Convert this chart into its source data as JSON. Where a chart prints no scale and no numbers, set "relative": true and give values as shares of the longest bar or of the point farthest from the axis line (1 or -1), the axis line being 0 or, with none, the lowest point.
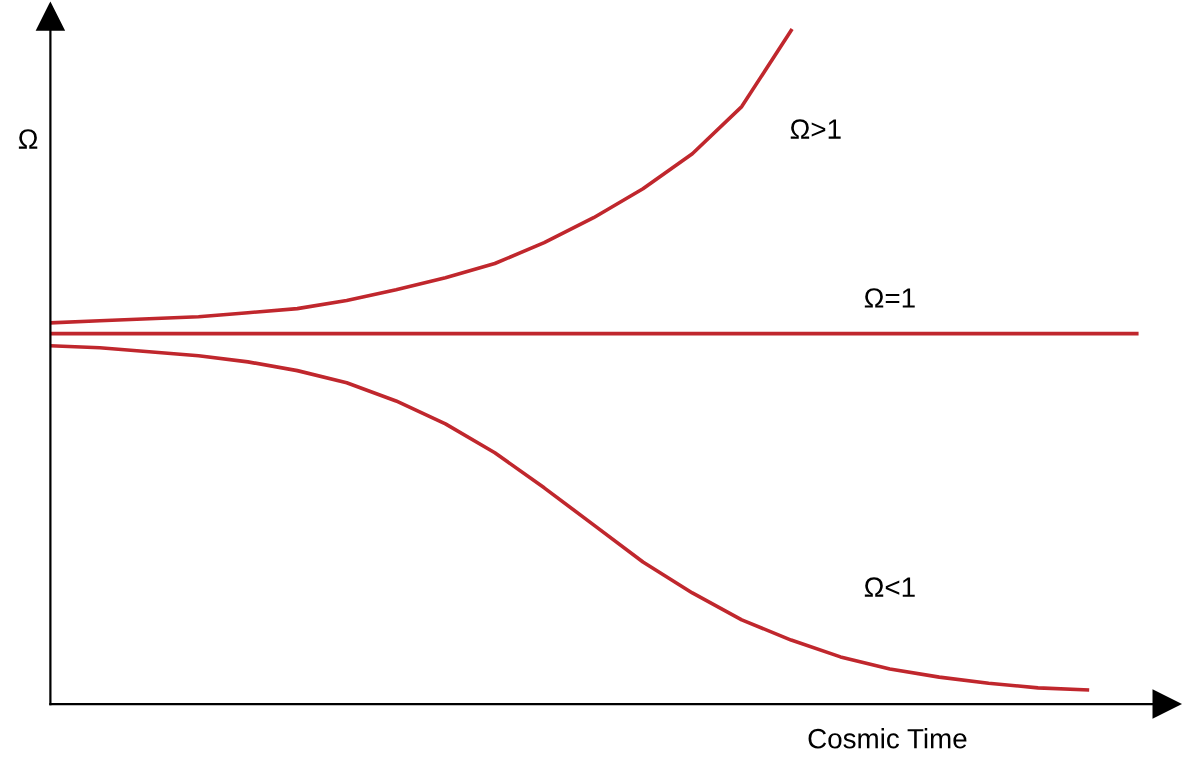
{
  "chart_data": {
    "type": "line",
    "relative": true,
    "xlabel": "Cosmic Time",
    "ylabel": "Ω",
    "legend": false,
    "marker": "none",
    "line_style": "solid",
    "categories": [
      null,
      null,
      null,
      null,
      null,
      null,
      null,
      null,
      null,
      null,
      null,
      null,
      null,
      null,
      null,
      null,
      null,
      null,
      null,
      null,
      null,
      null,
      null
    ],
    "series": [
      {
        "name": "Ω>1",
        "color": "#c0272d",
        "values": [
          0.566,
          0.569,
          0.572,
          0.575,
          0.581,
          0.587,
          0.599,
          0.615,
          0.633,
          0.654,
          0.685,
          0.722,
          0.765,
          0.817,
          0.887,
          1,
          null,
          null,
          null,
          null,
          null,
          null,
          null
        ]
      },
      {
        "name": "Ω=1",
        "color": "#c0272d",
        "values": [
          0.55,
          0.55,
          0.55,
          0.55,
          0.55,
          0.55,
          0.55,
          0.55,
          0.55,
          0.55,
          0.55,
          0.55,
          0.55,
          0.55,
          0.55,
          0.55,
          0.55,
          0.55,
          0.55,
          0.55,
          0.55,
          0.55,
          0.55
        ]
      },
      {
        "name": "Ω<1",
        "color": "#c0272d",
        "values": [
          0.532,
          0.529,
          0.523,
          0.517,
          0.508,
          0.495,
          0.477,
          0.45,
          0.416,
          0.373,
          0.321,
          0.266,
          0.211,
          0.165,
          0.125,
          0.095,
          0.07,
          0.052,
          0.04,
          0.031,
          0.024,
          0.021,
          null
        ]
      }
    ]
  }
}
